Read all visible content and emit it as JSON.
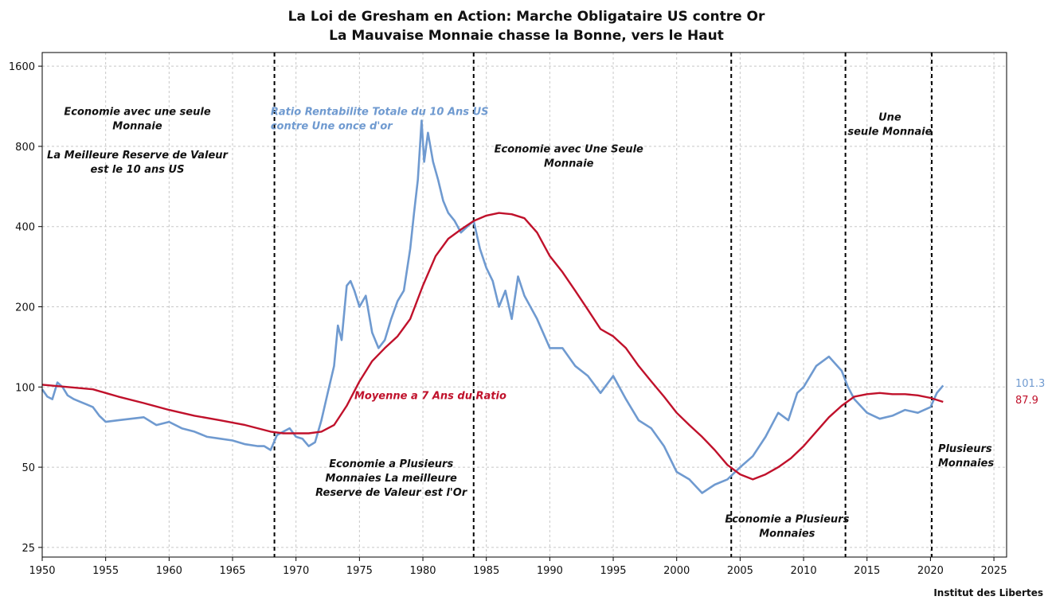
{
  "chart_data": {
    "type": "line",
    "title": "La Loi de Gresham en Action: Marche Obligataire US contre Or",
    "subtitle": "La Mauvaise Monnaie chasse la Bonne, vers le Haut",
    "credit": "Institut des Libertes",
    "y_scale": "log",
    "xlim": [
      1950,
      2026
    ],
    "ylim": [
      23,
      1800
    ],
    "x_ticks": [
      1950,
      1955,
      1960,
      1965,
      1970,
      1975,
      1980,
      1985,
      1990,
      1995,
      2000,
      2005,
      2010,
      2015,
      2020,
      2025
    ],
    "y_ticks": [
      25,
      50,
      100,
      200,
      400,
      800,
      1600
    ],
    "grid": true,
    "vlines": [
      1968.3,
      1984.0,
      2004.3,
      2013.3,
      2020.1
    ],
    "series": [
      {
        "name": "Ratio Rentabilite Totale du 10 Ans US contre Une once d'or",
        "color": "#6f9ad0",
        "last_value_label": "101.3",
        "x": [
          1950.0,
          1950.4,
          1950.8,
          1951.2,
          1951.6,
          1952.0,
          1952.5,
          1953.0,
          1953.5,
          1954.0,
          1954.5,
          1955.0,
          1956.0,
          1957.0,
          1958.0,
          1959.0,
          1960.0,
          1961.0,
          1962.0,
          1963.0,
          1964.0,
          1965.0,
          1966.0,
          1967.0,
          1967.5,
          1968.0,
          1968.5,
          1969.0,
          1969.5,
          1970.0,
          1970.5,
          1971.0,
          1971.5,
          1972.0,
          1972.5,
          1973.0,
          1973.3,
          1973.6,
          1974.0,
          1974.3,
          1974.6,
          1975.0,
          1975.5,
          1976.0,
          1976.5,
          1977.0,
          1977.5,
          1978.0,
          1978.5,
          1979.0,
          1979.3,
          1979.6,
          1979.9,
          1980.1,
          1980.4,
          1980.8,
          1981.2,
          1981.6,
          1982.0,
          1982.5,
          1983.0,
          1983.5,
          1984.0,
          1984.5,
          1985.0,
          1985.5,
          1986.0,
          1986.5,
          1987.0,
          1987.5,
          1988.0,
          1989.0,
          1990.0,
          1991.0,
          1992.0,
          1993.0,
          1994.0,
          1995.0,
          1996.0,
          1997.0,
          1998.0,
          1999.0,
          2000.0,
          2001.0,
          2002.0,
          2003.0,
          2004.0,
          2005.0,
          2006.0,
          2007.0,
          2008.0,
          2008.8,
          2009.5,
          2010.0,
          2011.0,
          2012.0,
          2013.0,
          2013.5,
          2014.0,
          2015.0,
          2016.0,
          2017.0,
          2018.0,
          2019.0,
          2020.0,
          2020.5,
          2021.0
        ],
        "y": [
          98,
          92,
          90,
          104,
          100,
          93,
          90,
          88,
          86,
          84,
          78,
          74,
          75,
          76,
          77,
          72,
          74,
          70,
          68,
          65,
          64,
          63,
          61,
          60,
          60,
          58,
          66,
          68,
          70,
          65,
          64,
          60,
          62,
          75,
          95,
          120,
          170,
          150,
          240,
          250,
          230,
          200,
          220,
          160,
          140,
          150,
          180,
          210,
          230,
          330,
          450,
          600,
          1000,
          700,
          900,
          700,
          600,
          500,
          450,
          420,
          380,
          400,
          420,
          330,
          280,
          250,
          200,
          230,
          180,
          260,
          220,
          180,
          140,
          140,
          120,
          110,
          95,
          110,
          90,
          75,
          70,
          60,
          48,
          45,
          40,
          43,
          45,
          50,
          55,
          65,
          80,
          75,
          95,
          100,
          120,
          130,
          115,
          100,
          90,
          80,
          76,
          78,
          82,
          80,
          84,
          95,
          101.3
        ]
      },
      {
        "name": "Moyenne a 7 Ans du Ratio",
        "color": "#c0112b",
        "last_value_label": "87.9",
        "x": [
          1950,
          1952,
          1954,
          1955,
          1956,
          1958,
          1960,
          1962,
          1964,
          1966,
          1968,
          1969,
          1970,
          1971,
          1972,
          1973,
          1974,
          1975,
          1976,
          1977,
          1978,
          1979,
          1980,
          1981,
          1982,
          1983,
          1984,
          1985,
          1986,
          1987,
          1988,
          1989,
          1990,
          1991,
          1992,
          1993,
          1994,
          1995,
          1996,
          1997,
          1998,
          1999,
          2000,
          2001,
          2002,
          2003,
          2004,
          2005,
          2006,
          2007,
          2008,
          2009,
          2010,
          2011,
          2012,
          2013,
          2014,
          2015,
          2016,
          2017,
          2018,
          2019,
          2020,
          2021
        ],
        "y": [
          102,
          100,
          98,
          95,
          92,
          87,
          82,
          78,
          75,
          72,
          68,
          67,
          67,
          67,
          68,
          72,
          85,
          105,
          125,
          140,
          155,
          180,
          240,
          310,
          360,
          390,
          420,
          440,
          450,
          445,
          430,
          380,
          310,
          270,
          230,
          195,
          165,
          155,
          140,
          120,
          105,
          92,
          80,
          72,
          65,
          58,
          51,
          47,
          45,
          47,
          50,
          54,
          60,
          68,
          77,
          85,
          92,
          94,
          95,
          94,
          94,
          93,
          91,
          87.9
        ]
      }
    ],
    "annotations": [
      {
        "lines": [
          "Economie avec une seule",
          "Monnaie"
        ],
        "x": 1957.5,
        "y": 1050,
        "style": "black"
      },
      {
        "lines": [
          "La Meilleure Reserve de Valeur",
          "est le 10 ans US"
        ],
        "x": 1957.5,
        "y": 720,
        "style": "black"
      },
      {
        "lines": [
          "Ratio Rentabilite Totale du 10 Ans US",
          "contre Une once d'or"
        ],
        "x": 1968.0,
        "y": 1050,
        "style": "blue",
        "anchor": "start"
      },
      {
        "lines": [
          "Economie avec Une Seule",
          "Monnaie"
        ],
        "x": 1991.5,
        "y": 760,
        "style": "black"
      },
      {
        "lines": [
          "Une",
          "seule Monnaie"
        ],
        "x": 2016.8,
        "y": 1000,
        "style": "black"
      },
      {
        "lines": [
          "Moyenne a 7 Ans du Ratio"
        ],
        "x": 1974.6,
        "y": 90,
        "style": "red",
        "anchor": "start"
      },
      {
        "lines": [
          "Economie a Plusieurs",
          "Monnaies La meilleure",
          "Reserve de Valeur est l'Or"
        ],
        "x": 1977.5,
        "y": 50,
        "style": "black"
      },
      {
        "lines": [
          "Economie a Plusieurs",
          "Monnaies"
        ],
        "x": 2008.7,
        "y": 31,
        "style": "black"
      },
      {
        "lines": [
          "Plusieurs",
          "Monnaies"
        ],
        "x": 2020.6,
        "y": 57,
        "style": "black",
        "anchor": "start"
      }
    ]
  }
}
